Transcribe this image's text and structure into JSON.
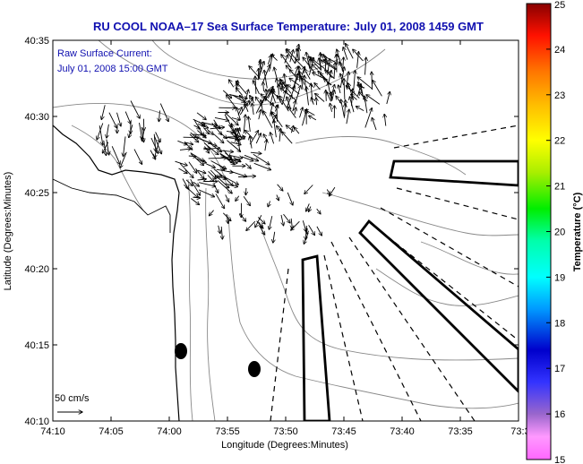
{
  "title": "RU COOL  NOAA–17  Sea Surface Temperature:  July 01, 2008 1459 GMT",
  "annotation": {
    "line1": "Raw Surface Current:",
    "line2": "July 01, 2008 15:00 GMT"
  },
  "scale": {
    "label": "50 cm/s"
  },
  "chart_data": {
    "type": "map",
    "x_axis": {
      "label": "Longitude (Degrees:Minutes)",
      "ticks": [
        "74:10",
        "74:05",
        "74:00",
        "73:55",
        "73:50",
        "73:45",
        "73:40",
        "73:35",
        "73:3"
      ]
    },
    "y_axis": {
      "label": "Latitude (Degrees:Minutes)",
      "ticks": [
        "40:35",
        "40:30",
        "40:25",
        "40:20",
        "40:15",
        "40:10"
      ]
    },
    "colorbar": {
      "label": "Temperature (°C)",
      "range": [
        15,
        25
      ],
      "ticks": [
        "25",
        "24",
        "23",
        "22",
        "21",
        "20",
        "19",
        "18",
        "17",
        "16",
        "15"
      ]
    },
    "vectors": "raw surface current arrows over the harbor mouth region",
    "colors": {
      "title": "#1010b0",
      "annotation": "#1010b0"
    }
  }
}
